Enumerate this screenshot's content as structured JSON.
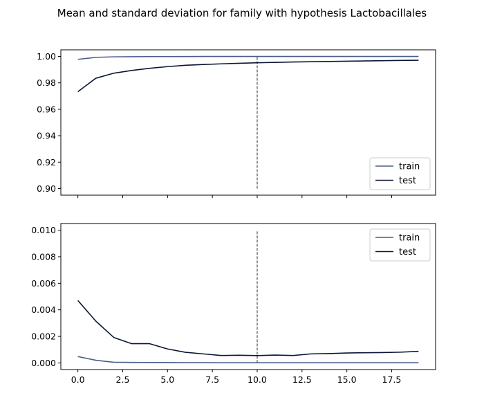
{
  "figure": {
    "title": "Mean and standard deviation for family with hypothesis Lactobacillales"
  },
  "colors": {
    "train": "#4a5d8a",
    "test": "#0b1633",
    "vline": "#3b3b3b",
    "axis": "#000000"
  },
  "chart_data": [
    {
      "type": "line",
      "panel": "mean",
      "x": [
        0,
        1,
        2,
        3,
        4,
        5,
        6,
        7,
        8,
        9,
        10,
        11,
        12,
        13,
        14,
        15,
        16,
        17,
        18,
        19
      ],
      "series": [
        {
          "name": "train",
          "values": [
            0.9978,
            0.9993,
            0.9997,
            0.9998,
            0.9999,
            0.9999,
            0.99995,
            0.99997,
            0.99998,
            0.99998,
            0.99999,
            0.99999,
            0.99999,
            0.99999,
            0.99999,
            0.99999,
            0.99999,
            0.99999,
            0.99999,
            0.99999
          ]
        },
        {
          "name": "test",
          "values": [
            0.9733,
            0.9835,
            0.9873,
            0.9894,
            0.991,
            0.9923,
            0.9933,
            0.9939,
            0.9944,
            0.9948,
            0.9952,
            0.9955,
            0.9958,
            0.996,
            0.9962,
            0.9964,
            0.9966,
            0.9968,
            0.997,
            0.9971
          ]
        }
      ],
      "vline": {
        "x": 10,
        "ymin": 0.9,
        "ymax": 1.0
      },
      "xlim": [
        -0.95,
        19.95
      ],
      "ylim": [
        0.895,
        1.005
      ],
      "yticks": [
        0.9,
        0.92,
        0.94,
        0.96,
        0.98,
        1.0
      ],
      "ytick_labels": [
        "0.90",
        "0.92",
        "0.94",
        "0.96",
        "0.98",
        "1.00"
      ],
      "xticks": [
        0,
        2.5,
        5,
        7.5,
        10,
        12.5,
        15,
        17.5
      ],
      "xtick_labels_visible": false,
      "legend": {
        "placement": "lower-right",
        "entries": [
          "train",
          "test"
        ]
      }
    },
    {
      "type": "line",
      "panel": "std",
      "x": [
        0,
        1,
        2,
        3,
        4,
        5,
        6,
        7,
        8,
        9,
        10,
        11,
        12,
        13,
        14,
        15,
        16,
        17,
        18,
        19
      ],
      "series": [
        {
          "name": "train",
          "values": [
            0.00048,
            0.0002,
            5e-05,
            4e-05,
            3e-05,
            3e-05,
            2e-05,
            2e-05,
            1e-05,
            1e-05,
            1e-05,
            1e-05,
            1e-05,
            1e-05,
            1e-05,
            1e-05,
            1e-05,
            1e-05,
            1e-05,
            1e-05
          ]
        },
        {
          "name": "test",
          "values": [
            0.0047,
            0.00315,
            0.00192,
            0.00145,
            0.00145,
            0.00105,
            0.0008,
            0.00068,
            0.00056,
            0.00058,
            0.00055,
            0.00059,
            0.00056,
            0.00068,
            0.0007,
            0.00075,
            0.00077,
            0.00078,
            0.00081,
            0.00087
          ]
        }
      ],
      "vline": {
        "x": 10,
        "ymin": 0.0,
        "ymax": 0.01
      },
      "xlim": [
        -0.95,
        19.95
      ],
      "ylim": [
        -0.0005,
        0.0105
      ],
      "yticks": [
        0.0,
        0.002,
        0.004,
        0.006,
        0.008,
        0.01
      ],
      "ytick_labels": [
        "0.000",
        "0.002",
        "0.004",
        "0.006",
        "0.008",
        "0.010"
      ],
      "xticks": [
        0,
        2.5,
        5,
        7.5,
        10,
        12.5,
        15,
        17.5
      ],
      "xtick_labels": [
        "0.0",
        "2.5",
        "5.0",
        "7.5",
        "10.0",
        "12.5",
        "15.0",
        "17.5"
      ],
      "legend": {
        "placement": "upper-right",
        "entries": [
          "train",
          "test"
        ]
      }
    }
  ]
}
